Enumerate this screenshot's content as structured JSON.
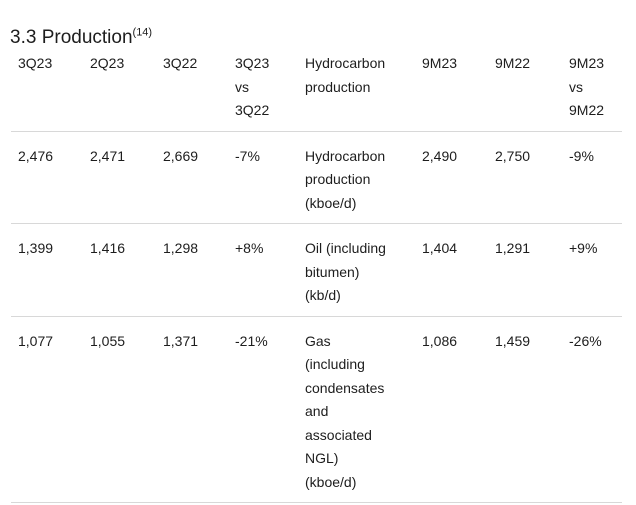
{
  "title": {
    "text": "3.3 Production",
    "superscript": "(14)"
  },
  "table": {
    "header_cells": [
      [
        "3Q23"
      ],
      [
        "2Q23"
      ],
      [
        "3Q22"
      ],
      [
        "3Q23",
        "vs",
        "3Q22"
      ],
      [
        "Hydrocarbon",
        "production"
      ],
      [
        "9M23"
      ],
      [
        "9M22"
      ],
      [
        "9M23",
        "vs",
        "9M22"
      ]
    ],
    "rows": [
      {
        "name": "hydrocarbon-production",
        "cells": [
          [
            "2,476"
          ],
          [
            "2,471"
          ],
          [
            "2,669"
          ],
          [
            "-7%"
          ],
          [
            "Hydrocarbon",
            "production",
            "(kboe/d)"
          ],
          [
            "2,490"
          ],
          [
            "2,750"
          ],
          [
            "-9%"
          ]
        ]
      },
      {
        "name": "oil-including-bitumen",
        "cells": [
          [
            "1,399"
          ],
          [
            "1,416"
          ],
          [
            "1,298"
          ],
          [
            "+8%"
          ],
          [
            "Oil (including",
            "bitumen)",
            "(kb/d)"
          ],
          [
            "1,404"
          ],
          [
            "1,291"
          ],
          [
            "+9%"
          ]
        ]
      },
      {
        "name": "gas-including-condensates",
        "cells": [
          [
            "1,077"
          ],
          [
            "1,055"
          ],
          [
            "1,371"
          ],
          [
            "-21%"
          ],
          [
            "Gas",
            "(including",
            "condensates",
            "and",
            "associated",
            "NGL)",
            "(kboe/d)"
          ],
          [
            "1,086"
          ],
          [
            "1,459"
          ],
          [
            "-26%"
          ]
        ]
      }
    ]
  },
  "colors": {
    "text": "#1d1d1d",
    "separator": "#d8d8d8",
    "background": "#ffffff"
  }
}
